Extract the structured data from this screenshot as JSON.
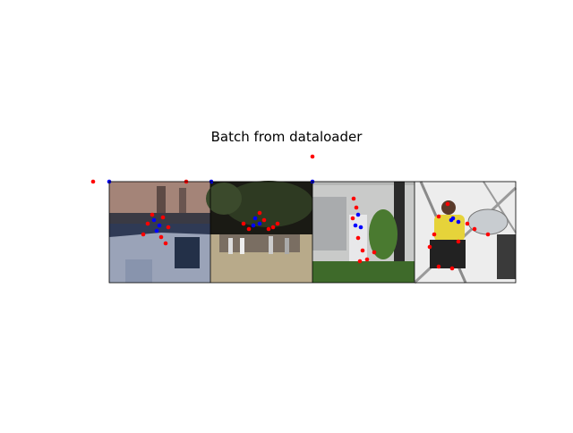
{
  "figure": {
    "title": "Batch from dataloader"
  },
  "panels": [
    {
      "scene": "gymnastics-vault",
      "colors": {
        "bg": "#8b6f66",
        "floor": "#2f3a55",
        "mat": "#9aa3b8"
      }
    },
    {
      "scene": "outdoor-crowd-jump",
      "colors": {
        "sky": "#1a1a14",
        "ground": "#b8aa8a",
        "trees": "#2e3a22"
      }
    },
    {
      "scene": "house-side-jump",
      "colors": {
        "wall": "#c9cac9",
        "grass": "#3e6a2a",
        "pole": "#2a2a2a"
      }
    },
    {
      "scene": "ferris-wheel-sitting",
      "colors": {
        "sky": "#ededed",
        "metal": "#9a9a9a",
        "shirt": "#e6d33a"
      }
    }
  ],
  "keypoint_colors": {
    "joint": "#ff0000",
    "center": "#0000ff"
  }
}
